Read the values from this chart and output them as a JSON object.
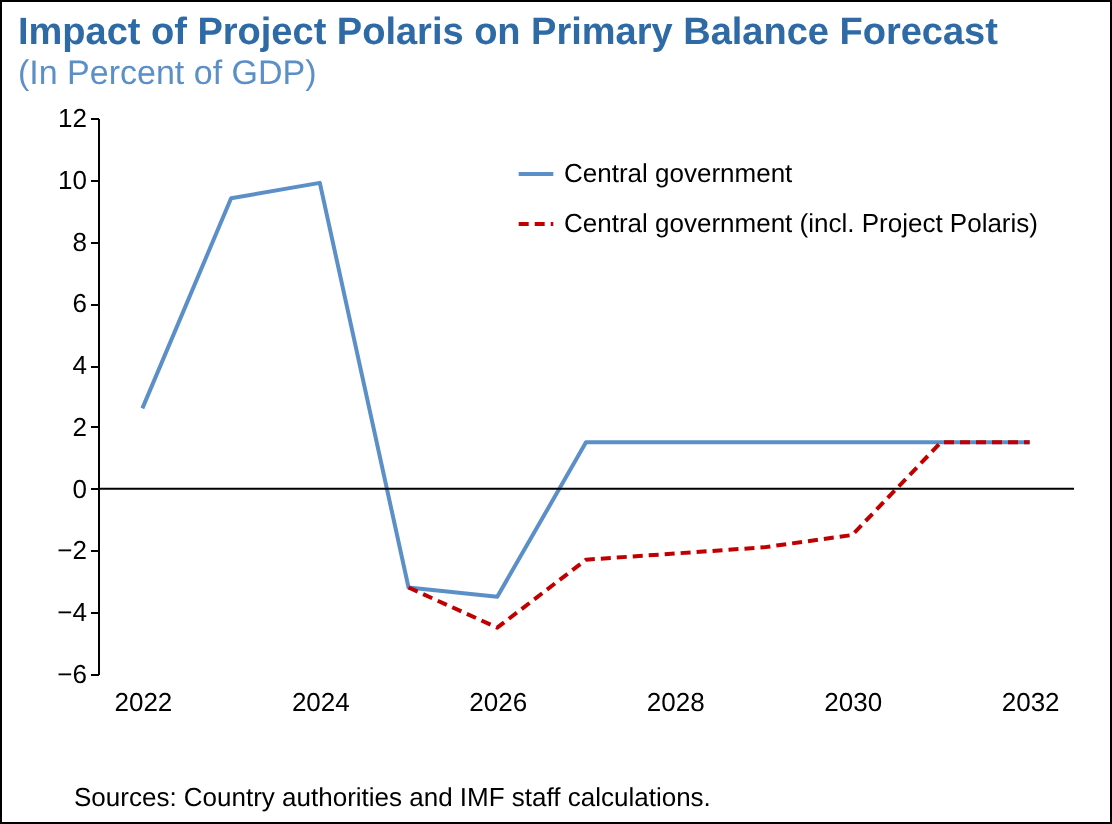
{
  "chart_data": {
    "type": "line",
    "title": "Impact of Project Polaris on Primary Balance Forecast",
    "subtitle": "(In Percent of GDP)",
    "x": [
      2022,
      2023,
      2024,
      2025,
      2026,
      2027,
      2028,
      2029,
      2030,
      2031,
      2032
    ],
    "series": [
      {
        "name": "Central government",
        "color": "#5b8fc7",
        "line_style": "solid",
        "values": [
          2.6,
          9.4,
          9.9,
          -3.2,
          -3.5,
          1.5,
          1.5,
          1.5,
          1.5,
          1.5,
          1.5
        ]
      },
      {
        "name": "Central government (incl. Project Polaris)",
        "color": "#c00000",
        "line_style": "dashed",
        "x": [
          2025,
          2026,
          2027,
          2028,
          2029,
          2030,
          2031,
          2032
        ],
        "values": [
          -3.2,
          -4.5,
          -2.3,
          -2.1,
          -1.9,
          -1.5,
          1.5,
          1.5
        ]
      }
    ],
    "xlim": [
      2021.5,
      2032.5
    ],
    "xticks": [
      2022,
      2024,
      2026,
      2028,
      2030,
      2032
    ],
    "ylim": [
      -6,
      12
    ],
    "yticks": [
      -6,
      -4,
      -2,
      0,
      2,
      4,
      6,
      8,
      10,
      12
    ],
    "ref_lines": [
      {
        "axis": "y",
        "value": 0,
        "color": "#000000"
      }
    ],
    "grid": false,
    "legend": "top right",
    "annotations": [
      "Sources: Country authorities and IMF staff calculations."
    ]
  }
}
